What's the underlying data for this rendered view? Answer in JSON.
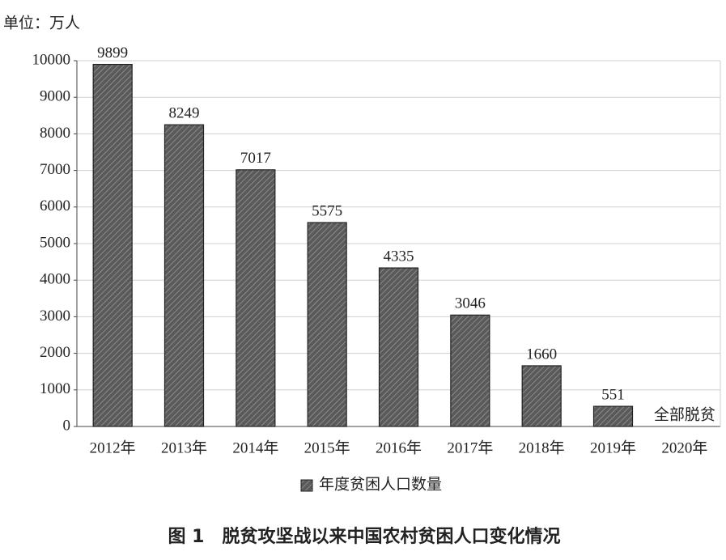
{
  "chart_data": {
    "type": "bar",
    "unit_label": "单位：万人",
    "title": "图 1　脱贫攻坚战以来中国农村贫困人口变化情况",
    "categories": [
      "2012年",
      "2013年",
      "2014年",
      "2015年",
      "2016年",
      "2017年",
      "2018年",
      "2019年",
      "2020年"
    ],
    "series": [
      {
        "name": "年度贫困人口数量",
        "color": "#5a5a5a",
        "values": [
          9899,
          8249,
          7017,
          5575,
          4335,
          3046,
          1660,
          551,
          0
        ],
        "value_labels": [
          "9899",
          "8249",
          "7017",
          "5575",
          "4335",
          "3046",
          "1660",
          "551",
          "全部脱贫"
        ]
      }
    ],
    "ylim": [
      0,
      10000
    ],
    "yticks": [
      0,
      1000,
      2000,
      3000,
      4000,
      5000,
      6000,
      7000,
      8000,
      9000,
      10000
    ],
    "grid": true
  }
}
